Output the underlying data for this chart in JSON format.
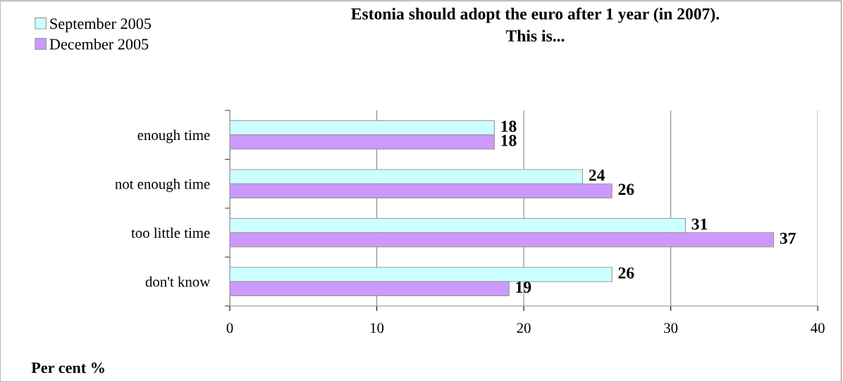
{
  "chart_data": {
    "type": "bar",
    "orientation": "horizontal",
    "title": "Estonia should adopt the euro after 1 year (in 2007).\nThis is...",
    "xlabel": "Per cent %",
    "categories": [
      "enough time",
      "not enough time",
      "too little time",
      "don't know"
    ],
    "series": [
      {
        "name": "September 2005",
        "color": "#ccffff",
        "values": [
          18,
          24,
          31,
          26
        ]
      },
      {
        "name": "December 2005",
        "color": "#cc99ff",
        "values": [
          18,
          26,
          37,
          19
        ]
      }
    ],
    "xlim": [
      0,
      40
    ],
    "xticks": [
      0,
      10,
      20,
      30,
      40
    ],
    "grid": "x",
    "legend": "top left",
    "data_labels": true
  }
}
